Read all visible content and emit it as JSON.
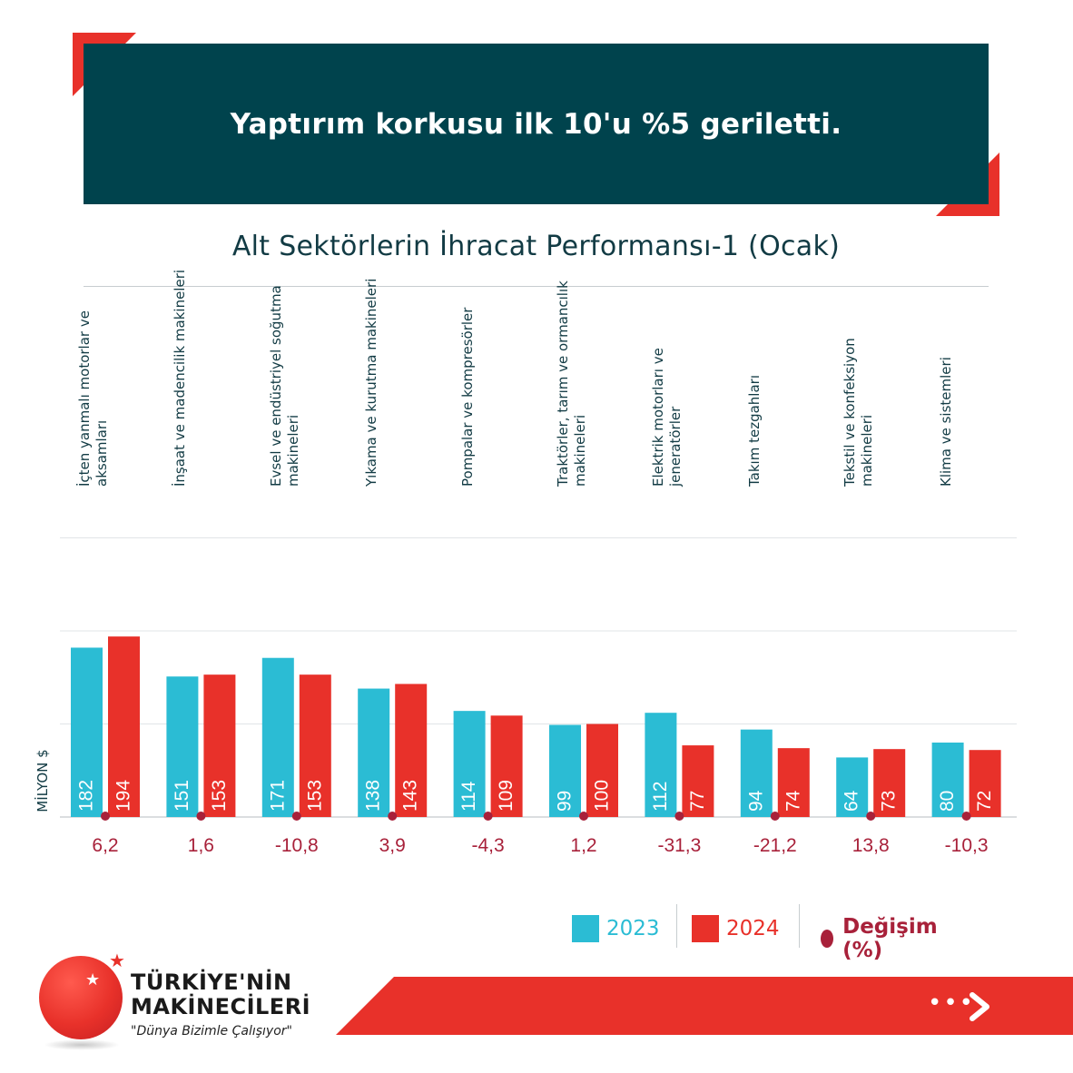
{
  "header": {
    "headline": "Yaptırım korkusu ilk 10'u %5 geriletti."
  },
  "chart_data": {
    "type": "bar",
    "title": "Alt Sektörlerin İhracat Performansı-1 (Ocak)",
    "ylabel": "MİLYON $",
    "ylim": [
      0,
      300
    ],
    "grid": true,
    "legend_position": "bottom-right",
    "categories": [
      "İçten yanmalı motorlar ve aksamları",
      "İnşaat ve madencilik makineleri",
      "Evsel ve endüstriyel soğutma makineleri",
      "Yıkama ve kurutma makineleri",
      "Pompalar ve kompresörler",
      "Traktörler, tarım ve ormancılık makineleri",
      "Elektrik motorları ve jeneratörler",
      "Takım tezgahları",
      "Tekstil ve konfeksiyon makineleri",
      "Klima ve sistemleri"
    ],
    "series": [
      {
        "name": "2023",
        "color": "#2bbcd4",
        "values": [
          182,
          151,
          171,
          138,
          114,
          99,
          112,
          94,
          64,
          80
        ]
      },
      {
        "name": "2024",
        "color": "#e8312a",
        "values": [
          194,
          153,
          153,
          143,
          109,
          100,
          77,
          74,
          73,
          72
        ]
      }
    ],
    "change": {
      "name": "Değişim (%)",
      "color": "#a8213a",
      "labels": [
        "6,2",
        "1,6",
        "-10,8",
        "3,9",
        "-4,3",
        "1,2",
        "-31,3",
        "-21,2",
        "13,8",
        "-10,3"
      ]
    }
  },
  "logo": {
    "line1": "TÜRKİYE'NİN",
    "line2": "MAKİNECİLERİ",
    "tagline": "\"Dünya Bizimle Çalışıyor\""
  },
  "footer": {
    "dots": "•••",
    "accent_color": "#e8312a"
  }
}
